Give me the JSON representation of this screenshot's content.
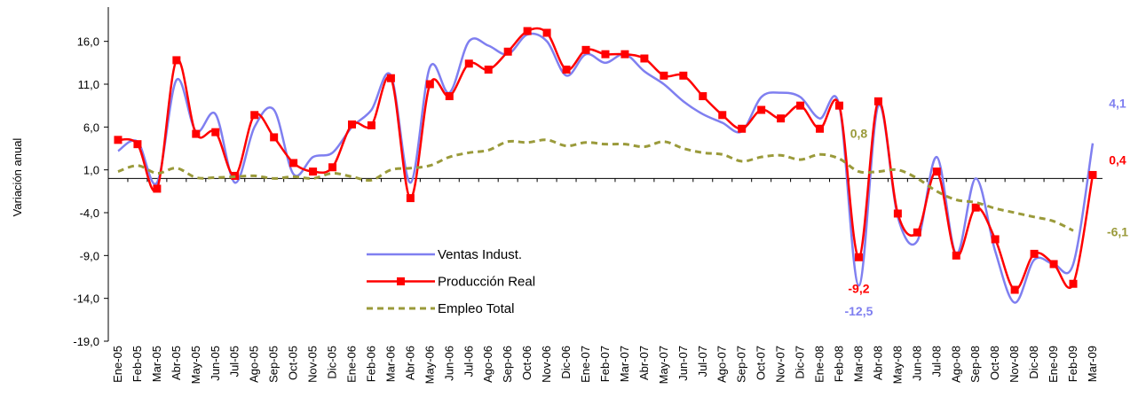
{
  "chart_data": {
    "type": "line",
    "y_label": "Variación anual",
    "categories": [
      "Ene-05",
      "Feb-05",
      "Mar-05",
      "Abr-05",
      "May-05",
      "Jun-05",
      "Jul-05",
      "Ago-05",
      "Sep-05",
      "Oct-05",
      "Nov-05",
      "Dic-05",
      "Ene-06",
      "Feb-06",
      "Mar-06",
      "Abr-06",
      "May-06",
      "Jun-06",
      "Jul-06",
      "Ago-06",
      "Sep-06",
      "Oct-06",
      "Nov-06",
      "Dic-06",
      "Ene-07",
      "Feb-07",
      "Mar-07",
      "Abr-07",
      "May-07",
      "Jun-07",
      "Jul-07",
      "Ago-07",
      "Sep-07",
      "Oct-07",
      "Nov-07",
      "Dic-07",
      "Ene-08",
      "Feb-08",
      "Mar-08",
      "Abr-08",
      "May-08",
      "Jun-08",
      "Jul-08",
      "Ago-08",
      "Sep-08",
      "Oct-08",
      "Nov-08",
      "Dic-08",
      "Ene-09",
      "Feb-09",
      "Mar-09"
    ],
    "series": [
      {
        "name": "Ventas Indust.",
        "color": "#7f7ff0",
        "marker": false,
        "dashed": false,
        "values": [
          3.2,
          4.3,
          -0.5,
          11.5,
          5.5,
          7.5,
          -0.5,
          6.0,
          8.0,
          0.5,
          2.5,
          3.0,
          6.0,
          8.0,
          12.0,
          -0.5,
          13.0,
          10.0,
          16.0,
          15.5,
          14.5,
          16.8,
          16.0,
          12.0,
          14.5,
          13.5,
          14.5,
          12.5,
          11.0,
          9.0,
          7.5,
          6.5,
          5.5,
          9.5,
          10.0,
          9.5,
          7.0,
          8.5,
          -12.5,
          8.5,
          -4.5,
          -7.3,
          2.5,
          -8.8,
          0.0,
          -8.5,
          -14.5,
          -9.5,
          -10.0,
          -10.0,
          4.1
        ],
        "value_labels": [
          null,
          null,
          null,
          null,
          null,
          null,
          null,
          null,
          null,
          null,
          null,
          null,
          null,
          null,
          null,
          null,
          null,
          null,
          null,
          null,
          null,
          null,
          null,
          null,
          null,
          null,
          null,
          null,
          null,
          null,
          null,
          null,
          null,
          null,
          null,
          null,
          null,
          null,
          "-12,5",
          null,
          null,
          null,
          null,
          null,
          null,
          null,
          null,
          null,
          null,
          null,
          "4,1"
        ]
      },
      {
        "name": "Producción Real",
        "color": "#ff0000",
        "marker": true,
        "dashed": false,
        "values": [
          4.5,
          4.0,
          -1.2,
          13.8,
          5.2,
          5.4,
          0.3,
          7.4,
          4.8,
          1.8,
          0.8,
          1.3,
          6.3,
          6.2,
          11.7,
          -2.3,
          11.0,
          9.6,
          13.4,
          12.7,
          14.8,
          17.2,
          17.0,
          12.7,
          15.0,
          14.5,
          14.5,
          14.0,
          12.0,
          12.0,
          9.6,
          7.4,
          5.8,
          8.0,
          7.0,
          8.5,
          5.8,
          8.5,
          -9.2,
          9.0,
          -4.1,
          -6.3,
          0.8,
          -9.0,
          -3.4,
          -7.1,
          -13.0,
          -8.8,
          -10.0,
          -12.3,
          0.4
        ],
        "value_labels": [
          null,
          null,
          null,
          null,
          null,
          null,
          null,
          null,
          null,
          null,
          null,
          null,
          null,
          null,
          null,
          null,
          null,
          null,
          null,
          null,
          null,
          null,
          null,
          null,
          null,
          null,
          null,
          null,
          null,
          null,
          null,
          null,
          null,
          null,
          null,
          null,
          null,
          null,
          "-9,2",
          null,
          null,
          null,
          null,
          null,
          null,
          null,
          null,
          null,
          null,
          null,
          "0,4"
        ]
      },
      {
        "name": "Empleo Total",
        "color": "#9a9a3a",
        "marker": false,
        "dashed": true,
        "values": [
          0.8,
          1.5,
          0.6,
          1.2,
          0.1,
          0.1,
          0.2,
          0.3,
          0.0,
          0.2,
          0.0,
          0.6,
          0.2,
          -0.2,
          1.0,
          1.2,
          1.5,
          2.5,
          3.0,
          3.3,
          4.3,
          4.2,
          4.5,
          3.8,
          4.2,
          4.0,
          4.0,
          3.7,
          4.3,
          3.5,
          3.0,
          2.8,
          2.0,
          2.5,
          2.7,
          2.2,
          2.8,
          2.3,
          0.8,
          0.8,
          1.0,
          0.0,
          -1.5,
          -2.5,
          -2.8,
          -3.5,
          -4.0,
          -4.5,
          -5.0,
          -6.1,
          null
        ],
        "value_labels": [
          null,
          null,
          null,
          null,
          null,
          null,
          null,
          null,
          null,
          null,
          null,
          null,
          null,
          null,
          null,
          null,
          null,
          null,
          null,
          null,
          null,
          null,
          null,
          null,
          null,
          null,
          null,
          null,
          null,
          null,
          null,
          null,
          null,
          null,
          null,
          null,
          null,
          null,
          "0,8",
          null,
          null,
          null,
          null,
          null,
          null,
          null,
          null,
          null,
          null,
          "-6,1",
          null
        ]
      }
    ],
    "ylim": [
      -19,
      20
    ],
    "yticks": [
      {
        "value": -19,
        "label": "-19,0"
      },
      {
        "value": -14,
        "label": "-14,0"
      },
      {
        "value": -9,
        "label": "-9,0"
      },
      {
        "value": -4,
        "label": "-4,0"
      },
      {
        "value": 1,
        "label": "1,0"
      },
      {
        "value": 6,
        "label": "6,0"
      },
      {
        "value": 11,
        "label": "11,0"
      },
      {
        "value": 16,
        "label": "16,0"
      }
    ],
    "grid": false
  }
}
